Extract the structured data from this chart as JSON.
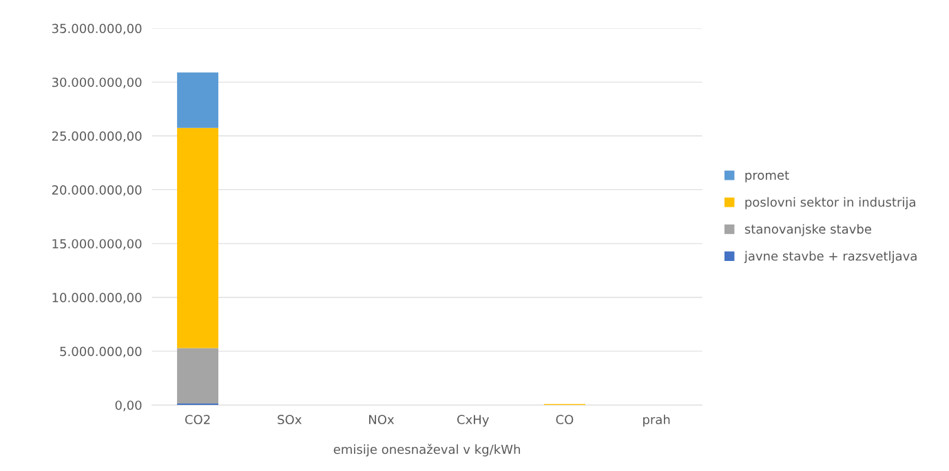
{
  "chart_data": {
    "type": "bar",
    "stacked": true,
    "xlabel": "emisije onesnaževal v kg/kWh",
    "categories": [
      "CO2",
      "SOx",
      "NOx",
      "CxHy",
      "CO",
      "prah"
    ],
    "series": [
      {
        "name": "javne stavbe + razsvetljava",
        "color": "#4472c4",
        "values": [
          150000,
          null,
          null,
          null,
          null,
          null
        ]
      },
      {
        "name": "stanovanjske stavbe",
        "color": "#a5a5a5",
        "values": [
          5150000,
          null,
          null,
          null,
          null,
          null
        ]
      },
      {
        "name": "poslovni sektor in industrija",
        "color": "#ffc000",
        "values": [
          20450000,
          null,
          null,
          null,
          100000,
          null
        ]
      },
      {
        "name": "promet",
        "color": "#5b9bd5",
        "values": [
          5150000,
          null,
          null,
          null,
          null,
          null
        ]
      }
    ],
    "ylim": [
      0,
      35000000
    ],
    "yticks": [
      {
        "value": 0,
        "label": "0,00"
      },
      {
        "value": 5000000,
        "label": "5.000.000,00"
      },
      {
        "value": 10000000,
        "label": "10.000.000,00"
      },
      {
        "value": 15000000,
        "label": "15.000.000,00"
      },
      {
        "value": 20000000,
        "label": "20.000.000,00"
      },
      {
        "value": 25000000,
        "label": "25.000.000,00"
      },
      {
        "value": 30000000,
        "label": "30.000.000,00"
      },
      {
        "value": 35000000,
        "label": "35.000.000,00"
      }
    ],
    "grid": "y",
    "legend": "right"
  }
}
